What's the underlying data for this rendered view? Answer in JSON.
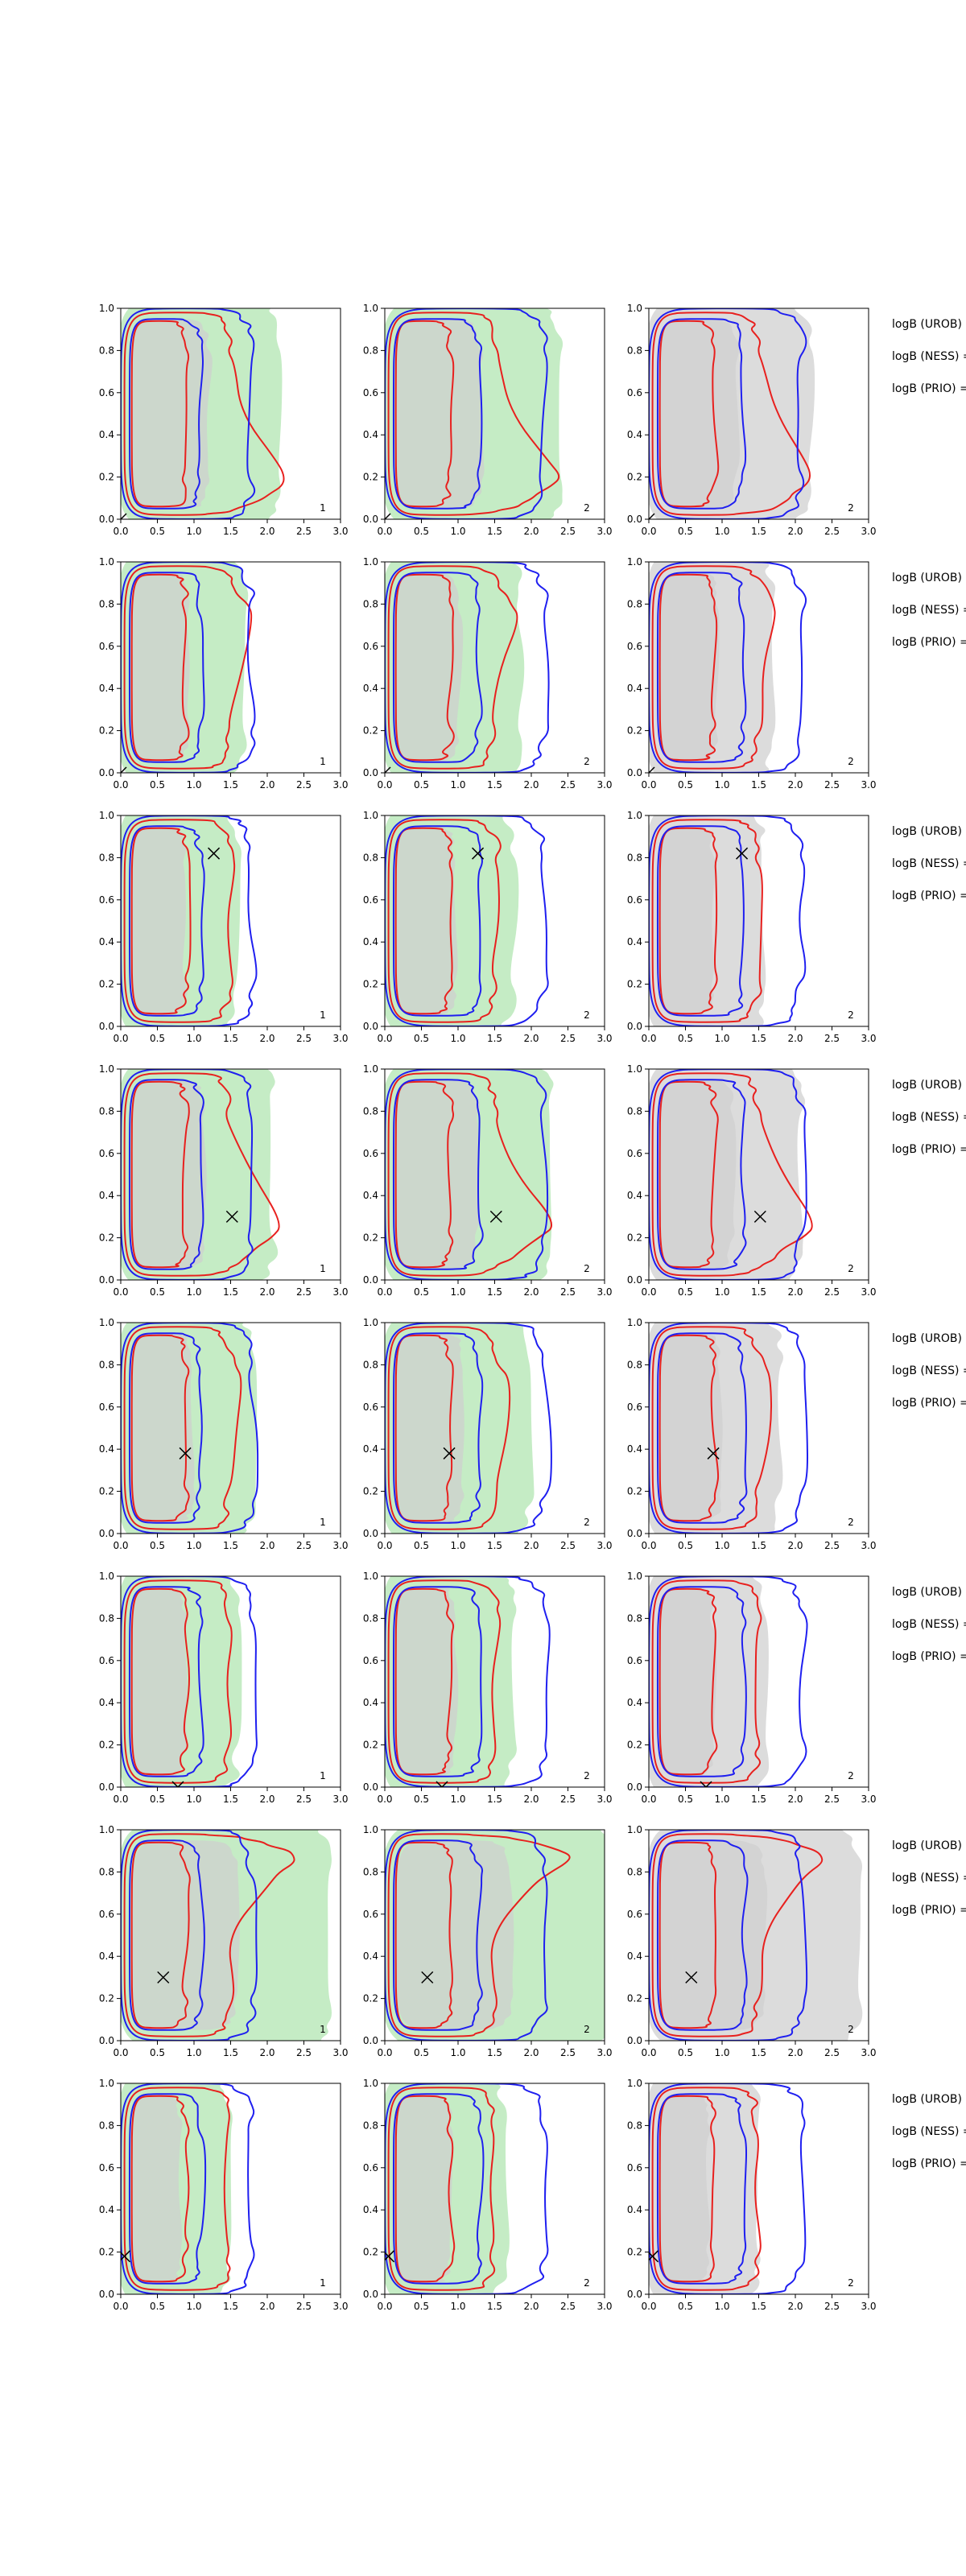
{
  "chart_data": {
    "type": "contour",
    "grid": "off",
    "xlim": [
      0,
      3
    ],
    "ylim": [
      0,
      1
    ],
    "xticks": [
      "0.0",
      "0.5",
      "1.0",
      "1.5",
      "2.0",
      "2.5",
      "3.0"
    ],
    "yticks": [
      "0.0",
      "0.2",
      "0.4",
      "0.6",
      "0.8",
      "1.0"
    ],
    "colors": {
      "red_contour": "#e8201e",
      "blue_contour": "#1f1ff0",
      "green_fill": "#c5ecc5",
      "grey_fill": "#dcdcdc",
      "inner_fill": "#cfcfcf",
      "marker": "#000000"
    },
    "column_corner_labels": [
      "1",
      "2",
      "2"
    ],
    "column_fills": [
      "green",
      "green",
      "grey"
    ],
    "row_side_labels": [
      "logB (UROB) =",
      "logB (NESS) =",
      "logB (PRIO) ="
    ],
    "rows": [
      {
        "marker": [
          0.0,
          0.0
        ],
        "red_bulge": [
          2.3,
          0.2,
          0.4
        ],
        "green_w": 2.2
      },
      {
        "marker": [
          0.0,
          0.0
        ],
        "red_bulge": [
          1.8,
          0.7,
          0.3
        ],
        "green_w": 1.7
      },
      {
        "marker": [
          1.27,
          0.82
        ],
        "red_bulge": [
          1.5,
          0.8,
          0.3
        ],
        "green_w": 1.6
      },
      {
        "marker": [
          1.52,
          0.3
        ],
        "red_bulge": [
          2.4,
          0.3,
          0.3
        ],
        "green_w": 2.1
      },
      {
        "marker": [
          0.88,
          0.38
        ],
        "red_bulge": [
          1.7,
          0.6,
          0.3
        ],
        "green_w": 1.8
      },
      {
        "marker": [
          0.78,
          0.0
        ],
        "red_bulge": [
          1.5,
          0.8,
          0.3
        ],
        "green_w": 1.6
      },
      {
        "marker": [
          0.58,
          0.3
        ],
        "red_bulge": [
          2.6,
          0.88,
          0.25
        ],
        "green_w": 2.9
      },
      {
        "marker": [
          0.05,
          0.18
        ],
        "red_bulge": [
          1.4,
          0.5,
          0.3
        ],
        "green_w": 1.5
      }
    ]
  }
}
